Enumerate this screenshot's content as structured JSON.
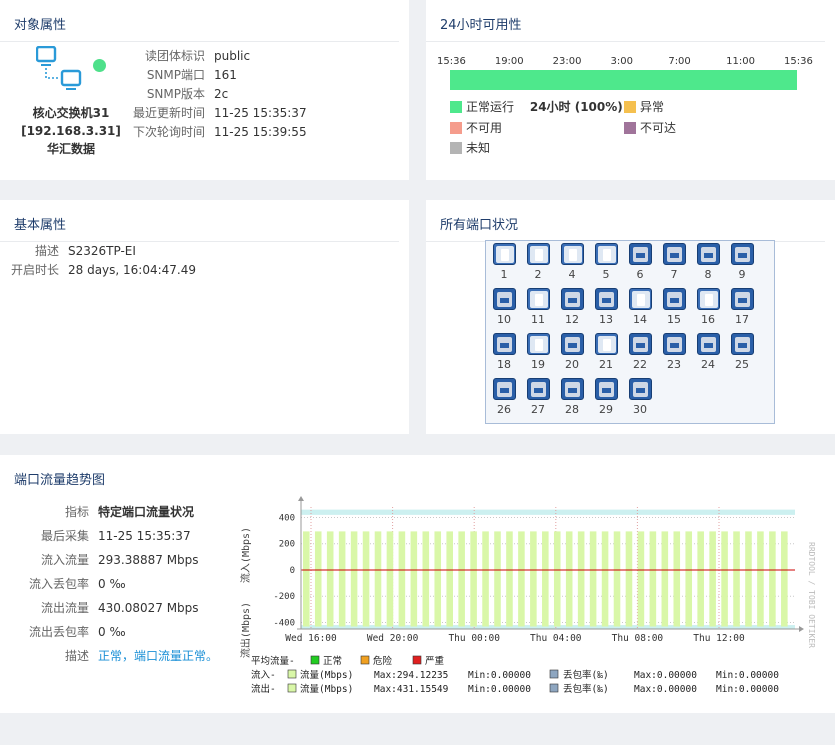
{
  "object_props": {
    "title": "对象属性",
    "device_name": "核心交换机31",
    "device_ip": "[192.168.3.31]",
    "device_vendor": "华汇数据",
    "status_color": "#4ee08a",
    "fields": [
      {
        "k": "读团体标识",
        "v": "public"
      },
      {
        "k": "SNMP端口",
        "v": "161"
      },
      {
        "k": "SNMP版本",
        "v": "2c"
      },
      {
        "k": "最近更新时间",
        "v": "11-25 15:35:37"
      },
      {
        "k": "下次轮询时间",
        "v": "11-25 15:39:55"
      }
    ]
  },
  "availability": {
    "title": "24小时可用性",
    "time_labels": [
      "15:36",
      "19:00",
      "23:00",
      "3:00",
      "7:00",
      "11:00",
      "15:36"
    ],
    "up_fraction": 1.0,
    "legend": {
      "normal": "正常运行",
      "normal_value": "24小时 (100%)",
      "abnormal": "异常",
      "unavailable": "不可用",
      "unreachable": "不可达",
      "unknown": "未知"
    },
    "colors": {
      "normal": "#4ee88c",
      "abnormal": "#f5c04f",
      "unavailable": "#f59c8c",
      "unreachable": "#a0749a",
      "unknown": "#b4b4b4"
    }
  },
  "basic_props": {
    "title": "基本属性",
    "fields": [
      {
        "k": "描述",
        "v": "S2326TP-EI"
      },
      {
        "k": "开启时长",
        "v": "28 days, 16:04:47.49"
      }
    ]
  },
  "ports": {
    "title": "所有端口状况",
    "items": [
      {
        "n": "1",
        "up": false
      },
      {
        "n": "2",
        "up": false
      },
      {
        "n": "4",
        "up": false
      },
      {
        "n": "5",
        "up": false
      },
      {
        "n": "6",
        "up": true
      },
      {
        "n": "7",
        "up": true
      },
      {
        "n": "8",
        "up": true
      },
      {
        "n": "9",
        "up": true
      },
      {
        "n": "10",
        "up": true
      },
      {
        "n": "11",
        "up": false
      },
      {
        "n": "12",
        "up": true
      },
      {
        "n": "13",
        "up": true
      },
      {
        "n": "14",
        "up": false
      },
      {
        "n": "15",
        "up": true
      },
      {
        "n": "16",
        "up": false
      },
      {
        "n": "17",
        "up": true
      },
      {
        "n": "18",
        "up": true
      },
      {
        "n": "19",
        "up": false
      },
      {
        "n": "20",
        "up": true
      },
      {
        "n": "21",
        "up": false
      },
      {
        "n": "22",
        "up": true
      },
      {
        "n": "23",
        "up": true
      },
      {
        "n": "24",
        "up": true
      },
      {
        "n": "25",
        "up": true
      },
      {
        "n": "26",
        "up": true
      },
      {
        "n": "27",
        "up": true
      },
      {
        "n": "28",
        "up": true
      },
      {
        "n": "29",
        "up": true
      },
      {
        "n": "30",
        "up": true
      }
    ]
  },
  "traffic": {
    "title": "端口流量趋势图",
    "fields": [
      {
        "k": "指标",
        "v": "特定端口流量状况",
        "bold": true
      },
      {
        "k": "最后采集",
        "v": "11-25 15:35:37"
      },
      {
        "k": "流入流量",
        "v": "293.38887 Mbps"
      },
      {
        "k": "流入丢包率",
        "v": "0 ‰"
      },
      {
        "k": "流出流量",
        "v": "430.08027 Mbps"
      },
      {
        "k": "流出丢包率",
        "v": "0 ‰"
      },
      {
        "k": "描述",
        "v": "正常，端口流量正常。",
        "link": true
      }
    ],
    "chart_labels": {
      "y_in": "流入(Mbps)",
      "y_out": "流出(Mbps)",
      "watermark": "RRDTOOL / TOBI OETIKER",
      "legend_avg": "平均流量-",
      "legend_normal": "正常",
      "legend_danger": "危险",
      "legend_severe": "严重",
      "in_row_label": "流入-",
      "in_flow": "流量(Mbps)",
      "in_max": "Max:294.12235",
      "in_min": "Min:0.00000",
      "in_loss": "丢包率(‰)",
      "in_loss_max": "Max:0.00000",
      "in_loss_min": "Min:0.00000",
      "out_row_label": "流出-",
      "out_flow": "流量(Mbps)",
      "out_max": "Max:431.15549",
      "out_min": "Min:0.00000",
      "out_loss": "丢包率(‰)",
      "out_loss_max": "Max:0.00000",
      "out_loss_min": "Min:0.00000"
    },
    "chart_data": {
      "type": "bar",
      "title": "端口流量趋势图",
      "ylabel": "流入(Mbps) / 流出(Mbps)",
      "ylim": [
        -450,
        480
      ],
      "y_ticks": [
        400,
        200,
        0,
        -200,
        -400
      ],
      "x_ticks": [
        "Wed 16:00",
        "Wed 20:00",
        "Thu 00:00",
        "Thu 04:00",
        "Thu 08:00",
        "Thu 12:00"
      ],
      "bar_count": 41,
      "series": [
        {
          "name": "流入流量",
          "value": 294.12,
          "color": "#d9f7a8"
        },
        {
          "name": "流出流量",
          "value": -431.16,
          "color": "#d9f7a8"
        }
      ],
      "colors": {
        "normal": "#22cc22",
        "danger": "#f0a020",
        "severe": "#e02020",
        "band": "#ccf0f0",
        "zero_line": "#cc0000"
      }
    }
  }
}
